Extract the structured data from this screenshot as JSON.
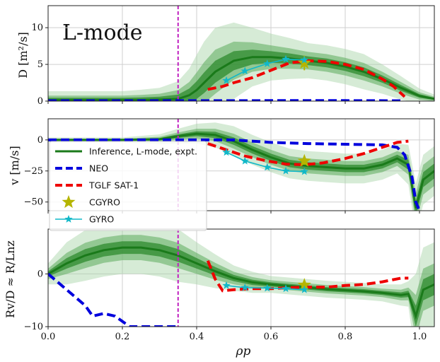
{
  "chart_data": [
    {
      "type": "line",
      "panel": "top",
      "title": "L-mode",
      "xlabel": "",
      "ylabel": "D [m²/s]",
      "xlim": [
        0.0,
        1.04
      ],
      "ylim": [
        0,
        13
      ],
      "xticks": [
        "0.0",
        "0.2",
        "0.4",
        "0.6",
        "0.8",
        "1.0"
      ],
      "yticks": [
        0,
        5,
        10
      ],
      "ytick_labels": [
        "0",
        "5",
        "10"
      ],
      "grid": true,
      "vline_x": 0.35,
      "series": [
        {
          "name": "Inference, L-mode, expt.",
          "color": "#1a7a1a",
          "x": [
            0.0,
            0.05,
            0.1,
            0.15,
            0.2,
            0.25,
            0.3,
            0.35,
            0.38,
            0.4,
            0.42,
            0.45,
            0.5,
            0.55,
            0.6,
            0.65,
            0.7,
            0.75,
            0.8,
            0.85,
            0.9,
            0.95,
            1.0,
            1.04
          ],
          "y": [
            0.15,
            0.15,
            0.15,
            0.15,
            0.15,
            0.15,
            0.2,
            0.3,
            0.8,
            1.5,
            2.5,
            4.0,
            5.5,
            6.0,
            6.0,
            5.8,
            5.5,
            5.2,
            4.7,
            4.0,
            3.0,
            1.8,
            0.7,
            0.3
          ],
          "band1": [
            0.3,
            0.3,
            0.3,
            0.3,
            0.3,
            0.35,
            0.4,
            0.6,
            0.9,
            1.2,
            1.4,
            1.5,
            1.3,
            1.0,
            0.8,
            0.7,
            0.6,
            0.6,
            0.6,
            0.6,
            0.5,
            0.4,
            0.25,
            0.15
          ],
          "band2": [
            0.6,
            0.6,
            0.6,
            0.6,
            0.6,
            0.7,
            0.8,
            1.2,
            1.8,
            2.4,
            2.8,
            3.0,
            2.6,
            2.0,
            1.6,
            1.4,
            1.2,
            1.2,
            1.2,
            1.2,
            1.0,
            0.8,
            0.5,
            0.3
          ],
          "band3": [
            1.2,
            1.2,
            1.2,
            1.2,
            1.2,
            1.4,
            1.6,
            2.4,
            3.6,
            4.8,
            5.6,
            6.0,
            5.2,
            4.0,
            3.2,
            2.8,
            2.4,
            2.4,
            2.4,
            2.4,
            2.0,
            1.6,
            1.0,
            0.6
          ]
        },
        {
          "name": "NEO",
          "color": "#0000dd",
          "style": "dashed",
          "x": [
            0.0,
            0.2,
            0.4,
            0.6,
            0.8,
            0.96
          ],
          "y": [
            0.05,
            0.05,
            0.06,
            0.07,
            0.07,
            0.05
          ]
        },
        {
          "name": "TGLF SAT-1",
          "color": "#ee0000",
          "style": "dashed",
          "x": [
            0.43,
            0.47,
            0.5,
            0.55,
            0.6,
            0.65,
            0.7,
            0.75,
            0.8,
            0.85,
            0.9,
            0.93,
            0.96
          ],
          "y": [
            1.6,
            2.0,
            2.5,
            3.2,
            4.2,
            5.2,
            5.5,
            5.4,
            5.0,
            4.3,
            3.0,
            2.0,
            0.6
          ]
        },
        {
          "name": "CGYRO",
          "color": "#b5b500",
          "marker": "star",
          "x": [
            0.69
          ],
          "y": [
            5.2
          ],
          "yerr": 1.0
        },
        {
          "name": "GYRO",
          "color": "#11b8c8",
          "marker": "star",
          "x": [
            0.48,
            0.53,
            0.59,
            0.64,
            0.69
          ],
          "y": [
            2.8,
            4.1,
            5.1,
            5.7,
            5.6
          ]
        }
      ]
    },
    {
      "type": "line",
      "panel": "middle",
      "xlabel": "",
      "ylabel": "v [m/s]",
      "xlim": [
        0.0,
        1.04
      ],
      "ylim": [
        -57,
        17
      ],
      "xticks": [
        "0.0",
        "0.2",
        "0.4",
        "0.6",
        "0.8",
        "1.0"
      ],
      "yticks": [
        0,
        -25,
        -50
      ],
      "ytick_labels": [
        "0",
        "−25",
        "−50"
      ],
      "grid": true,
      "vline_x": 0.35,
      "legend": {
        "location": "lower-left",
        "entries": [
          "Inference, L-mode, expt.",
          "NEO",
          "TGLF SAT-1",
          "CGYRO",
          "GYRO"
        ]
      },
      "series": [
        {
          "name": "Inference, L-mode, expt.",
          "color": "#1a7a1a",
          "x": [
            0.0,
            0.1,
            0.2,
            0.3,
            0.35,
            0.4,
            0.45,
            0.5,
            0.55,
            0.6,
            0.65,
            0.7,
            0.75,
            0.8,
            0.85,
            0.9,
            0.94,
            0.97,
            0.99,
            1.01,
            1.04
          ],
          "y": [
            0,
            0,
            0,
            0.5,
            3,
            5,
            4,
            -1,
            -8,
            -14,
            -19,
            -21,
            -22,
            -23,
            -23,
            -20,
            -15,
            -20,
            -55,
            -32,
            -25
          ],
          "band1": [
            0.5,
            0.5,
            0.5,
            1,
            1.5,
            2,
            2.5,
            3,
            3,
            3,
            3,
            3,
            3,
            3,
            3,
            3,
            3,
            4,
            6,
            6,
            6
          ],
          "band2": [
            1,
            1,
            1,
            2,
            3,
            4,
            5,
            6,
            6,
            6,
            6,
            6,
            6,
            6,
            6,
            6,
            6,
            8,
            12,
            12,
            12
          ],
          "band3": [
            2,
            2,
            2,
            4,
            6,
            8,
            10,
            12,
            12,
            12,
            12,
            12,
            12,
            12,
            12,
            12,
            12,
            16,
            20,
            20,
            20
          ]
        },
        {
          "name": "NEO",
          "color": "#0000dd",
          "style": "dashed",
          "x": [
            0.0,
            0.2,
            0.35,
            0.5,
            0.6,
            0.7,
            0.8,
            0.9,
            0.94,
            0.96,
            0.98,
            0.99,
            1.0
          ],
          "y": [
            0,
            0,
            0,
            0,
            -2,
            -3,
            -3.5,
            -4,
            -6,
            -12,
            -30,
            -50,
            -57
          ]
        },
        {
          "name": "TGLF SAT-1",
          "color": "#ee0000",
          "style": "dashed",
          "x": [
            0.43,
            0.48,
            0.53,
            0.59,
            0.64,
            0.69,
            0.74,
            0.8,
            0.85,
            0.9,
            0.94,
            0.97
          ],
          "y": [
            -3,
            -8,
            -13,
            -17,
            -19.5,
            -20,
            -18.5,
            -15,
            -11,
            -6,
            -2,
            -1
          ]
        },
        {
          "name": "CGYRO",
          "color": "#b5b500",
          "marker": "star",
          "x": [
            0.69
          ],
          "y": [
            -17
          ],
          "yerr": 3
        },
        {
          "name": "GYRO",
          "color": "#11b8c8",
          "marker": "star",
          "x": [
            0.48,
            0.53,
            0.59,
            0.64,
            0.69
          ],
          "y": [
            -10,
            -17,
            -22,
            -25,
            -25.5
          ]
        }
      ]
    },
    {
      "type": "line",
      "panel": "bottom",
      "xlabel": "ρp",
      "ylabel": "Rv/D ≈ R/Lnz",
      "xlim": [
        0.0,
        1.04
      ],
      "ylim": [
        -10,
        8.5
      ],
      "xticks": [
        "0.0",
        "0.2",
        "0.4",
        "0.6",
        "0.8",
        "1.0"
      ],
      "yticks": [
        0,
        -10
      ],
      "ytick_labels": [
        "0",
        "−10"
      ],
      "grid": true,
      "vline_x": 0.35,
      "series": [
        {
          "name": "Inference, L-mode, expt.",
          "color": "#1a7a1a",
          "x": [
            0.0,
            0.05,
            0.1,
            0.15,
            0.2,
            0.25,
            0.3,
            0.35,
            0.4,
            0.45,
            0.5,
            0.55,
            0.6,
            0.65,
            0.7,
            0.75,
            0.8,
            0.85,
            0.9,
            0.95,
            0.97,
            0.99,
            1.01,
            1.04
          ],
          "y": [
            0,
            2,
            3.5,
            4.5,
            5,
            5,
            4.5,
            3.5,
            2,
            0.5,
            -0.8,
            -1.6,
            -2,
            -2.3,
            -2.6,
            -2.9,
            -3.1,
            -3.3,
            -3.6,
            -4,
            -3.8,
            -8,
            -3,
            -2
          ],
          "band1": [
            0.5,
            1,
            1.2,
            1.2,
            1.2,
            1.2,
            1.2,
            1.2,
            1.0,
            0.8,
            0.6,
            0.5,
            0.4,
            0.4,
            0.4,
            0.4,
            0.4,
            0.4,
            0.4,
            0.5,
            0.6,
            2,
            2,
            2
          ],
          "band2": [
            1,
            2,
            2.4,
            2.4,
            2.4,
            2.4,
            2.4,
            2.4,
            2,
            1.6,
            1.2,
            1,
            0.8,
            0.8,
            0.8,
            0.8,
            0.8,
            0.8,
            0.8,
            1,
            1.2,
            4,
            4,
            4
          ],
          "band3": [
            2,
            4,
            4.8,
            5,
            5,
            5,
            5,
            5,
            4,
            3.2,
            2.4,
            2,
            1.6,
            1.6,
            1.6,
            1.6,
            1.6,
            1.6,
            1.6,
            2,
            2.4,
            8,
            8,
            8
          ]
        },
        {
          "name": "NEO",
          "color": "#0000dd",
          "style": "dashed",
          "x": [
            0.0,
            0.05,
            0.1,
            0.12,
            0.15,
            0.18,
            0.22,
            0.26,
            0.3,
            0.35
          ],
          "y": [
            0,
            -3,
            -6,
            -8,
            -7.5,
            -8,
            -10,
            -10,
            -10,
            -10
          ]
        },
        {
          "name": "TGLF SAT-1",
          "color": "#ee0000",
          "style": "dashed",
          "x": [
            0.43,
            0.45,
            0.47,
            0.5,
            0.55,
            0.6,
            0.65,
            0.7,
            0.75,
            0.8,
            0.85,
            0.9,
            0.95,
            0.97
          ],
          "y": [
            2.5,
            -1,
            -3.2,
            -3,
            -2.8,
            -2.8,
            -2.6,
            -2.5,
            -2.5,
            -2.2,
            -2,
            -1.5,
            -0.8,
            -0.8
          ]
        },
        {
          "name": "CGYRO",
          "color": "#b5b500",
          "marker": "star",
          "x": [
            0.69
          ],
          "y": [
            -2.1
          ],
          "yerr": 0.6
        },
        {
          "name": "GYRO",
          "color": "#11b8c8",
          "marker": "star",
          "x": [
            0.48,
            0.53,
            0.59,
            0.64,
            0.69
          ],
          "y": [
            -2.2,
            -2.6,
            -2.7,
            -2.8,
            -3.0
          ]
        }
      ]
    }
  ]
}
